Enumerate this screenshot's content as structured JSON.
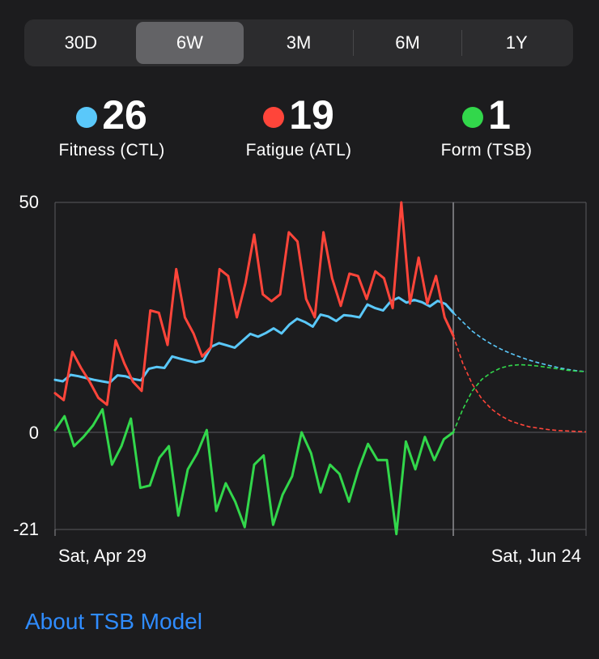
{
  "range_tabs": [
    {
      "label": "30D",
      "selected": false
    },
    {
      "label": "6W",
      "selected": true
    },
    {
      "label": "3M",
      "selected": false
    },
    {
      "label": "6M",
      "selected": false
    },
    {
      "label": "1Y",
      "selected": false
    }
  ],
  "metrics": {
    "fitness": {
      "value": "26",
      "label": "Fitness (CTL)",
      "color": "#5ac8fa"
    },
    "fatigue": {
      "value": "19",
      "label": "Fatigue (ATL)",
      "color": "#ff453a"
    },
    "form": {
      "value": "1",
      "label": "Form (TSB)",
      "color": "#32d74b"
    }
  },
  "chart_data": {
    "type": "line",
    "y_ticks": [
      "50",
      "0",
      "-21"
    ],
    "ylim": [
      -21,
      50
    ],
    "x_labels": [
      "Sat, Apr 29",
      "Sat, Jun 24"
    ],
    "x_range": [
      0,
      56
    ],
    "today_index": 42,
    "series": [
      {
        "key": "fitness",
        "color": "#5ac8fa",
        "values": [
          11.4,
          11.1,
          12.5,
          12.2,
          11.8,
          11.4,
          11.1,
          10.8,
          12.4,
          12.2,
          11.6,
          11.3,
          13.8,
          14.2,
          14.0,
          16.5,
          16.0,
          15.6,
          15.2,
          15.6,
          18.6,
          19.4,
          18.9,
          18.4,
          19.9,
          21.4,
          20.8,
          21.6,
          22.6,
          21.5,
          23.4,
          24.7,
          24.0,
          23.0,
          25.6,
          25.2,
          24.2,
          25.5,
          25.3,
          25.0,
          27.8,
          27.0,
          26.5,
          28.5,
          29.3,
          28.2,
          28.8,
          28.3,
          27.4,
          28.6,
          27.9,
          26.0
        ],
        "projection": [
          26.0,
          24.0,
          22.0,
          20.5,
          19.2,
          18.1,
          17.2,
          16.4,
          15.7,
          15.1,
          14.6,
          14.1,
          13.7,
          13.4,
          13.2
        ]
      },
      {
        "key": "fatigue",
        "color": "#ff453a",
        "values": [
          8.5,
          7.0,
          17.5,
          14.0,
          11.0,
          7.5,
          6.0,
          20.0,
          15.0,
          11.0,
          9.0,
          26.5,
          26.0,
          19.0,
          35.5,
          25.0,
          21.5,
          16.5,
          18.5,
          35.5,
          34.0,
          25.0,
          32.5,
          43.0,
          30.0,
          28.5,
          30.0,
          43.5,
          41.5,
          29.0,
          25.0,
          43.5,
          33.5,
          27.5,
          34.5,
          34.0,
          29.0,
          35.0,
          33.5,
          27.0,
          50.0,
          28.0,
          38.0,
          28.0,
          34.0,
          25.0,
          21.0
        ],
        "projection": [
          21.0,
          15.0,
          10.5,
          7.3,
          5.1,
          3.6,
          2.5,
          1.8,
          1.2,
          0.9,
          0.6,
          0.4,
          0.3,
          0.2,
          0.1
        ]
      },
      {
        "key": "form",
        "color": "#32d74b",
        "values": [
          0.5,
          3.5,
          -3.0,
          -1.0,
          1.5,
          5.0,
          -7.0,
          -3.0,
          3.0,
          -12.0,
          -11.5,
          -5.5,
          -3.0,
          -18.0,
          -8.0,
          -4.5,
          0.5,
          -17.0,
          -11.0,
          -15.0,
          -20.5,
          -7.0,
          -5.0,
          -20.0,
          -13.5,
          -9.5,
          0.0,
          -4.5,
          -13.0,
          -7.0,
          -9.0,
          -15.0,
          -8.0,
          -2.5,
          -6.0,
          -6.0,
          -22.0,
          -2.0,
          -8.0,
          -1.0,
          -6.0,
          -1.5,
          0.0
        ],
        "projection": [
          0.0,
          5.0,
          9.0,
          11.5,
          13.0,
          14.0,
          14.5,
          14.7,
          14.6,
          14.4,
          14.1,
          13.8,
          13.5,
          13.3,
          13.2
        ]
      }
    ]
  },
  "about_link": "About TSB Model"
}
